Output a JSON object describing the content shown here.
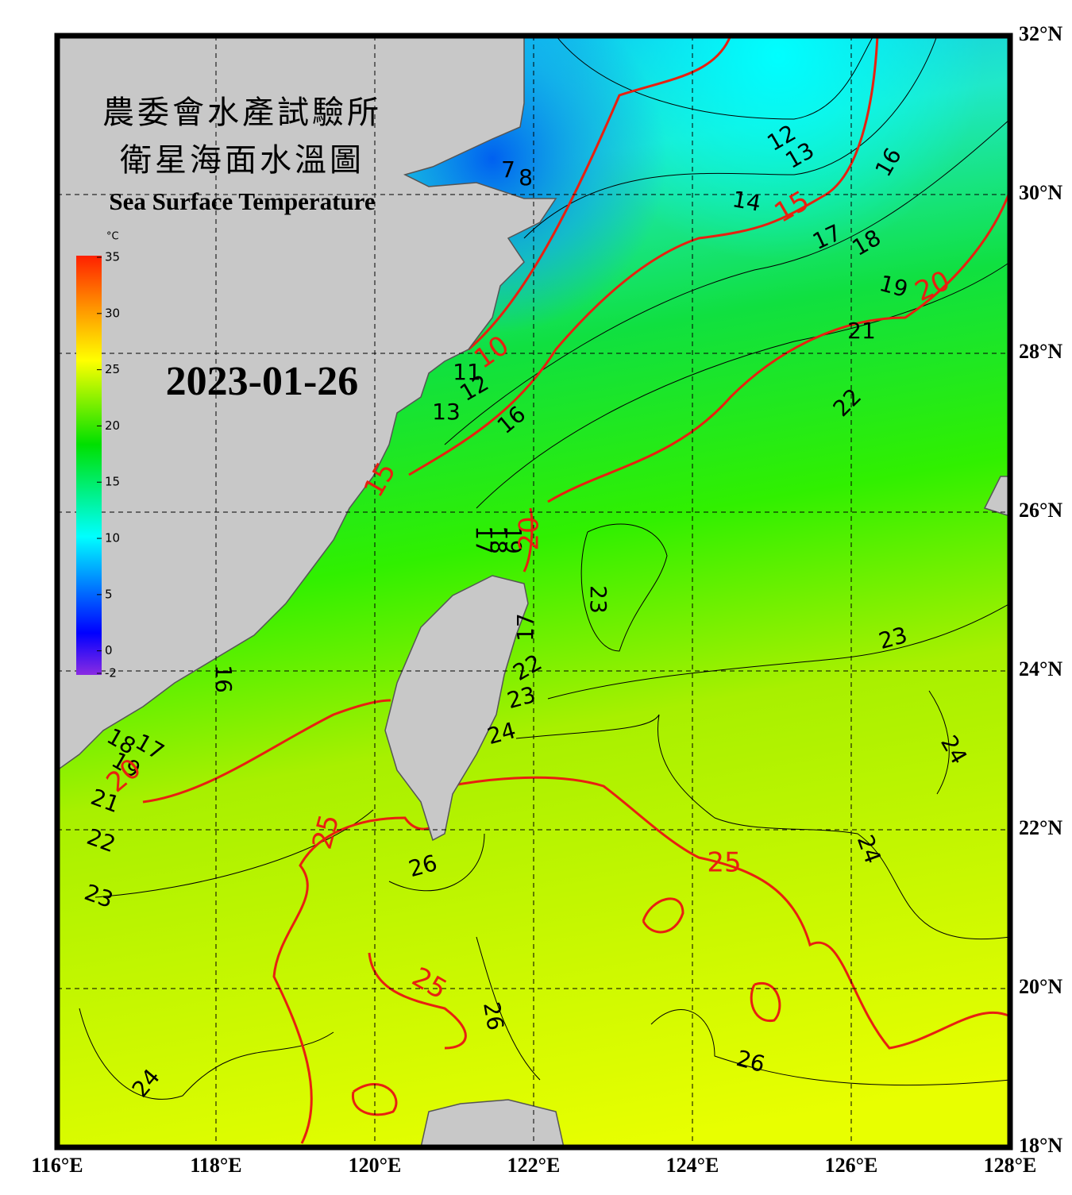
{
  "header": {
    "title_zh_1": "農委會水產試驗所",
    "title_zh_2": "衛星海面水溫圖",
    "title_en": "Sea Surface Temperature",
    "date": "2023-01-26"
  },
  "map": {
    "lonlim": [
      116,
      128
    ],
    "latlim": [
      18,
      32
    ],
    "grid": true,
    "lon_ticks": [
      {
        "value": 116,
        "label": "116°E"
      },
      {
        "value": 118,
        "label": "118°E"
      },
      {
        "value": 120,
        "label": "120°E"
      },
      {
        "value": 122,
        "label": "122°E"
      },
      {
        "value": 124,
        "label": "124°E"
      },
      {
        "value": 126,
        "label": "126°E"
      },
      {
        "value": 128,
        "label": "128°E"
      }
    ],
    "lat_ticks": [
      {
        "value": 18,
        "label": "18°N"
      },
      {
        "value": 20,
        "label": "20°N"
      },
      {
        "value": 22,
        "label": "22°N"
      },
      {
        "value": 24,
        "label": "24°N"
      },
      {
        "value": 26,
        "label": "26°N"
      },
      {
        "value": 28,
        "label": "28°N"
      },
      {
        "value": 30,
        "label": "30°N"
      },
      {
        "value": 32,
        "label": "32°N"
      }
    ]
  },
  "colorbar": {
    "unit": "°C",
    "range": [
      -2,
      35
    ],
    "ticks": [
      -2,
      0,
      5,
      10,
      15,
      20,
      25,
      30,
      35
    ]
  },
  "isotherm_labels": [
    12,
    13,
    16,
    14,
    17,
    18,
    19,
    21,
    22,
    7,
    8,
    11,
    12,
    13,
    16,
    23,
    23,
    22,
    23,
    24,
    24,
    24,
    26,
    26,
    26,
    24,
    16,
    17,
    18,
    19,
    21,
    22,
    23,
    17,
    17,
    18,
    19,
    10,
    15,
    15,
    20,
    20,
    20,
    25,
    25,
    25
  ]
}
